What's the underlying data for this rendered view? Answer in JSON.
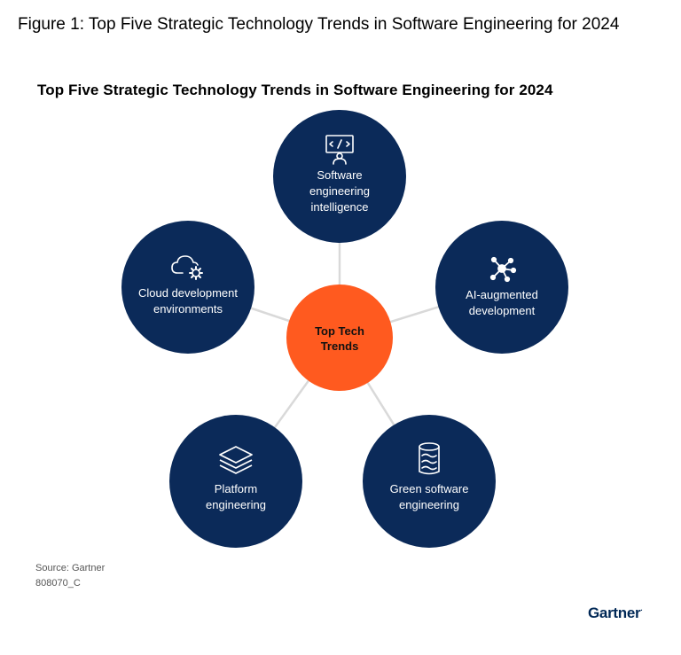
{
  "figure_title": "Figure 1: Top Five Strategic Technology Trends in Software Engineering for 2024",
  "chart_title": "Top Five Strategic Technology Trends in Software Engineering for 2024",
  "center": {
    "lines": [
      "Top Tech",
      "Trends"
    ],
    "color": "#FF5A1F"
  },
  "node_color": "#0B2A59",
  "connector_color": "#D9D9D9",
  "nodes": [
    {
      "id": "sei",
      "icon": "code-screen-person-icon",
      "lines": [
        "Software",
        "engineering",
        "intelligence"
      ]
    },
    {
      "id": "ai",
      "icon": "network-hub-icon",
      "lines": [
        "AI-augmented",
        "development"
      ]
    },
    {
      "id": "green",
      "icon": "database-waves-icon",
      "lines": [
        "Green software",
        "engineering"
      ]
    },
    {
      "id": "platform",
      "icon": "stacked-layers-icon",
      "lines": [
        "Platform",
        "engineering"
      ]
    },
    {
      "id": "cloud",
      "icon": "cloud-gear-icon",
      "lines": [
        "Cloud development",
        "environments"
      ]
    }
  ],
  "source": "Source: Gartner",
  "doc_id": "808070_C",
  "brand": "Gartner",
  "brand_mark": "."
}
